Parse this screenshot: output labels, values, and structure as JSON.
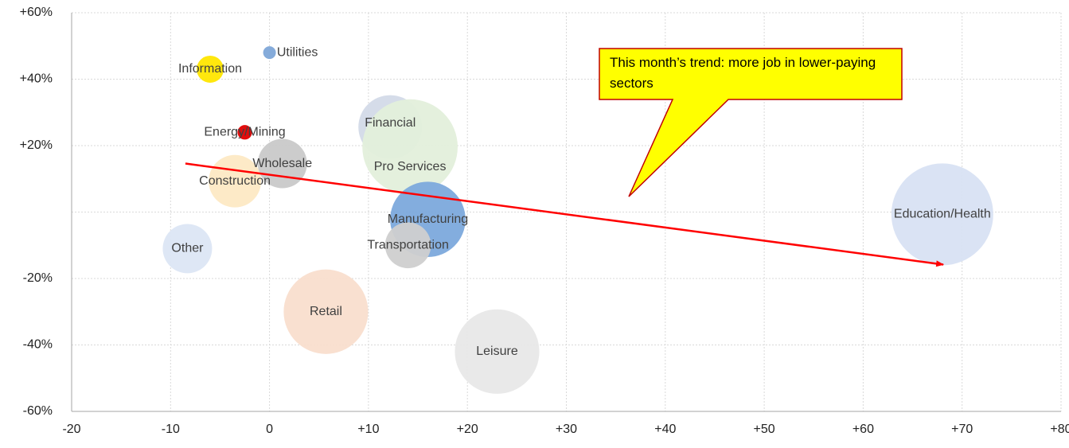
{
  "chart_data": {
    "type": "bubble",
    "xlim": [
      -20,
      80
    ],
    "xticks": [
      -20,
      -10,
      0,
      {
        "value": 10,
        "label": "+10"
      },
      {
        "value": 20,
        "label": "+20"
      },
      {
        "value": 30,
        "label": "+30"
      },
      {
        "value": 40,
        "label": "+40"
      },
      {
        "value": 50,
        "label": "+50"
      },
      {
        "value": 60,
        "label": "+60"
      },
      {
        "value": 70,
        "label": "+70"
      },
      {
        "value": 80,
        "label": "+80"
      }
    ],
    "ylim": [
      -60,
      60
    ],
    "yticks": [
      {
        "value": -60,
        "label": "-60%"
      },
      {
        "value": -40,
        "label": "-40%"
      },
      {
        "value": -20,
        "label": "-20%"
      },
      {
        "value": 0,
        "label": null
      },
      {
        "value": 20,
        "label": "+20%"
      },
      {
        "value": 40,
        "label": "+40%"
      },
      {
        "value": 60,
        "label": "+60%"
      }
    ],
    "grid": true,
    "points": [
      {
        "name": "Utilities",
        "x": 0,
        "y": 48,
        "size": 1,
        "color": "#7ea6d8"
      },
      {
        "name": "Information",
        "x": -6,
        "y": 43,
        "size": 4.5,
        "color": "#ffe600"
      },
      {
        "name": "Energy/Mining",
        "x": -2.5,
        "y": 24,
        "size": 1.3,
        "color": "#e00000"
      },
      {
        "name": "Wholesale",
        "x": 1.3,
        "y": 14.6,
        "size": 15,
        "color": "#c9c9c9"
      },
      {
        "name": "Construction",
        "x": -3.5,
        "y": 9.3,
        "size": 17,
        "color": "#fde9c4"
      },
      {
        "name": "Financial",
        "x": 12.2,
        "y": 25.6,
        "size": 25,
        "color": "#d3dae8"
      },
      {
        "name": "Pro Services",
        "x": 14.2,
        "y": 19.6,
        "size": 56,
        "color": "#e3efdb"
      },
      {
        "name": "Manufacturing",
        "x": 16,
        "y": -2.2,
        "size": 35,
        "color": "#7ca9dc"
      },
      {
        "name": "Transportation",
        "x": 14,
        "y": -10,
        "size": 13,
        "color": "#cfcfcf"
      },
      {
        "name": "Other",
        "x": -8.3,
        "y": -11,
        "size": 15,
        "color": "#dce6f4"
      },
      {
        "name": "Retail",
        "x": 5.7,
        "y": -30,
        "size": 44,
        "color": "#f9dece"
      },
      {
        "name": "Leisure",
        "x": 23,
        "y": -42,
        "size": 44,
        "color": "#e8e8e8"
      },
      {
        "name": "Education/Health",
        "x": 68,
        "y": -0.7,
        "size": 64,
        "color": "#d8e2f3"
      }
    ],
    "trend_line": {
      "x": [
        -8.5,
        68.1
      ],
      "y": [
        14.6,
        -15.8
      ],
      "color": "#ff0000"
    },
    "annotation": "This month’s trend: more job in lower-paying sectors"
  }
}
